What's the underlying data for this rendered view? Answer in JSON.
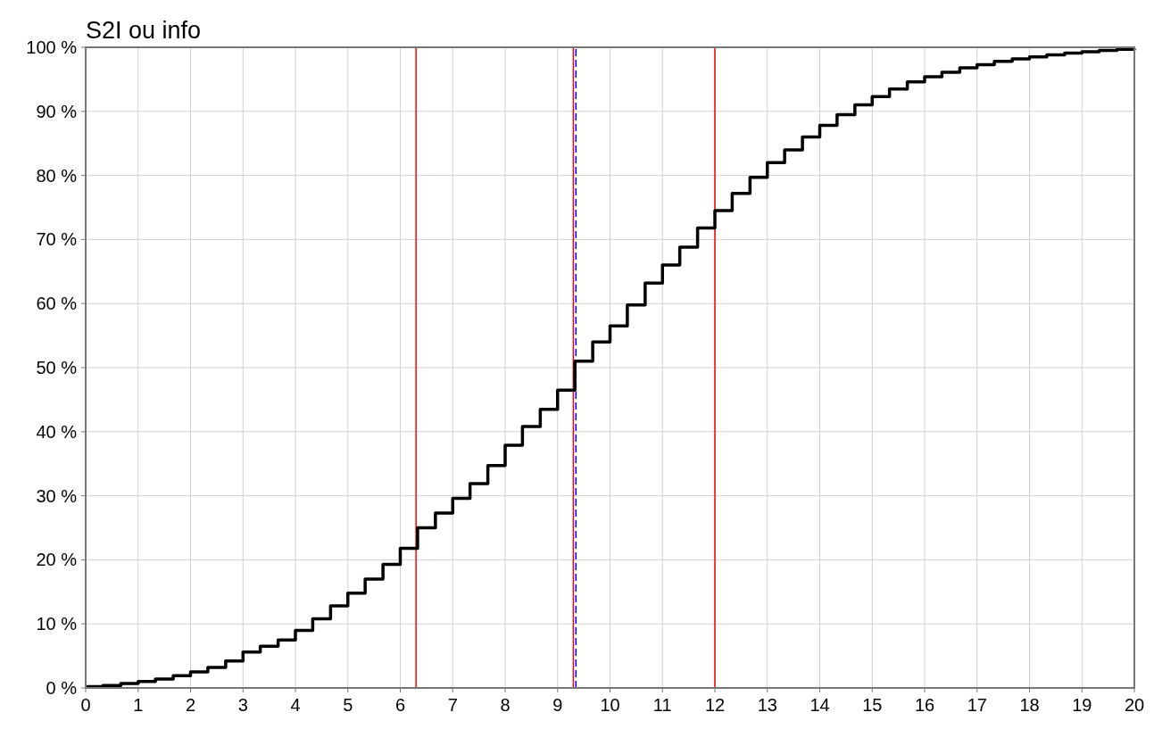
{
  "chart_data": {
    "type": "step",
    "title": "S2I ou info",
    "x": [
      0,
      0.33,
      0.67,
      1,
      1.33,
      1.67,
      2,
      2.33,
      2.67,
      3,
      3.33,
      3.67,
      4,
      4.33,
      4.67,
      5,
      5.33,
      5.67,
      6,
      6.33,
      6.67,
      7,
      7.33,
      7.67,
      8,
      8.33,
      8.67,
      9,
      9.33,
      9.67,
      10,
      10.33,
      10.67,
      11,
      11.33,
      11.67,
      12,
      12.33,
      12.67,
      13,
      13.33,
      13.67,
      14,
      14.33,
      14.67,
      15,
      15.33,
      15.67,
      16,
      16.33,
      16.67,
      17,
      17.33,
      17.67,
      18,
      18.33,
      18.67,
      19,
      19.33,
      19.67,
      20
    ],
    "series": [
      {
        "color": "#000000",
        "values": [
          0.2,
          0.4,
          0.7,
          1.0,
          1.4,
          1.9,
          2.5,
          3.2,
          4.2,
          5.6,
          6.5,
          7.5,
          9.0,
          10.8,
          12.8,
          14.8,
          17.0,
          19.3,
          21.8,
          25.0,
          27.3,
          29.6,
          31.9,
          34.7,
          37.9,
          40.8,
          43.5,
          46.5,
          51.0,
          54.0,
          56.5,
          59.8,
          63.2,
          66.0,
          68.8,
          71.8,
          74.5,
          77.2,
          79.7,
          82.0,
          84.0,
          86.0,
          87.8,
          89.5,
          91.0,
          92.3,
          93.5,
          94.6,
          95.4,
          96.1,
          96.8,
          97.3,
          97.8,
          98.2,
          98.5,
          98.8,
          99.1,
          99.3,
          99.5,
          99.7,
          99.8
        ]
      }
    ],
    "xlim": [
      0,
      20
    ],
    "xticks": [
      0,
      1,
      2,
      3,
      4,
      5,
      6,
      7,
      8,
      9,
      10,
      11,
      12,
      13,
      14,
      15,
      16,
      17,
      18,
      19,
      20
    ],
    "ylim": [
      0,
      100
    ],
    "yticks": [
      {
        "value": 0,
        "label": "0 %"
      },
      {
        "value": 10,
        "label": "10 %"
      },
      {
        "value": 20,
        "label": "20 %"
      },
      {
        "value": 30,
        "label": "30 %"
      },
      {
        "value": 40,
        "label": "40 %"
      },
      {
        "value": 50,
        "label": "50 %"
      },
      {
        "value": 60,
        "label": "60 %"
      },
      {
        "value": 70,
        "label": "70 %"
      },
      {
        "value": 80,
        "label": "80 %"
      },
      {
        "value": 90,
        "label": "90 %"
      },
      {
        "value": 100,
        "label": "100 %"
      }
    ],
    "ref_lines": [
      {
        "axis": "x",
        "value": 6.3,
        "color": "#ff0000",
        "line_style": "solid"
      },
      {
        "axis": "x",
        "value": 9.3,
        "color": "#ff0000",
        "line_style": "solid"
      },
      {
        "axis": "x",
        "value": 9.35,
        "color": "#0000ff",
        "line_style": "dashed"
      },
      {
        "axis": "x",
        "value": 12,
        "color": "#ff0000",
        "line_style": "solid"
      }
    ],
    "grid": true,
    "line_style": "solid"
  }
}
